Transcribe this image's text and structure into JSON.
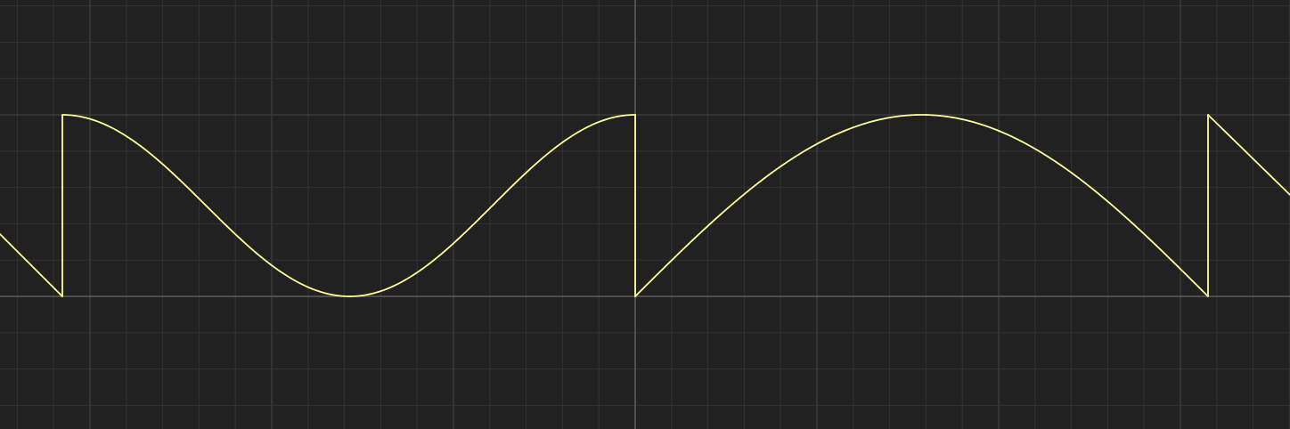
{
  "chart_data": {
    "type": "line",
    "title": "",
    "xlabel": "",
    "ylabel": "",
    "grid": true,
    "xlim": [
      -3.5,
      3.6
    ],
    "ylim": [
      -0.72,
      1.7
    ],
    "colors": {
      "background": "#212121",
      "grid_minor": "#333333",
      "grid_major": "#3f3f3f",
      "axis": "#5b5b5b",
      "series": "#ffff99"
    },
    "series": [
      {
        "name": "",
        "description_of_shape": "periodic |sin(x)|-like arcs split by vertical jumps",
        "x": [
          -3.5,
          -3.15,
          -3.15,
          -1.57,
          0.0,
          0.0,
          1.57,
          3.15,
          3.15,
          3.6
        ],
        "y": [
          0.35,
          0.0,
          1.0,
          0.0,
          1.0,
          0.0,
          1.0,
          0.0,
          1.0,
          0.56
        ]
      }
    ]
  }
}
